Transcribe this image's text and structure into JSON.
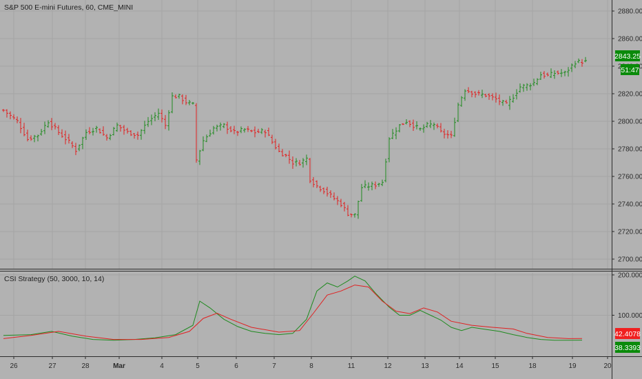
{
  "header": {
    "symbol_title": "S&P 500 E-mini Futures, 60, CME_MINI"
  },
  "indicator": {
    "title": "CSI Strategy (50, 3000, 10, 14)"
  },
  "badges": {
    "last_price": "2843.25",
    "countdown": "51:47",
    "ind_red": "42.4078",
    "ind_green": "38.3393"
  },
  "colors": {
    "background": "#b2b2b2",
    "up": "#1e8a1e",
    "down": "#e02020",
    "grid": "#a4a4a4",
    "badge_green": "#0a8a0a",
    "badge_red": "#f02020"
  },
  "axis": {
    "price_ticks": [
      "2880.00",
      "2860.00",
      "2840.00",
      "2820.00",
      "2800.00",
      "2780.00",
      "2760.00",
      "2740.00",
      "2720.00",
      "2700.00"
    ],
    "ind_ticks": [
      "200.0000",
      "100.0000"
    ],
    "x_ticks": [
      "26",
      "27",
      "28",
      "Mar",
      "4",
      "5",
      "6",
      "7",
      "8",
      "11",
      "12",
      "13",
      "14",
      "15",
      "18",
      "19",
      "20"
    ]
  },
  "chart_data": [
    {
      "type": "ohlc",
      "title": "S&P 500 E-mini Futures, 60, CME_MINI",
      "x_categories": [
        "26",
        "27",
        "28",
        "Mar",
        "4",
        "5",
        "6",
        "7",
        "8",
        "11",
        "12",
        "13",
        "14",
        "15",
        "18",
        "19",
        "20"
      ],
      "ylim": [
        2693,
        2888
      ],
      "y_ticks": [
        2880,
        2860,
        2840,
        2820,
        2800,
        2780,
        2760,
        2740,
        2720,
        2700
      ],
      "close_path": [
        [
          0,
          2808
        ],
        [
          4,
          2800
        ],
        [
          7,
          2787
        ],
        [
          10,
          2790
        ],
        [
          13,
          2800
        ],
        [
          16,
          2792
        ],
        [
          19,
          2785
        ],
        [
          21,
          2779
        ],
        [
          24,
          2792
        ],
        [
          27,
          2795
        ],
        [
          30,
          2788
        ],
        [
          33,
          2797
        ],
        [
          36,
          2792
        ],
        [
          39,
          2790
        ],
        [
          42,
          2800
        ],
        [
          45,
          2806
        ],
        [
          47,
          2797
        ],
        [
          49,
          2818
        ],
        [
          51,
          2818
        ],
        [
          53,
          2814
        ],
        [
          55,
          2812
        ],
        [
          56,
          2772
        ],
        [
          58,
          2786
        ],
        [
          61,
          2795
        ],
        [
          64,
          2797
        ],
        [
          67,
          2792
        ],
        [
          70,
          2794
        ],
        [
          73,
          2792
        ],
        [
          76,
          2793
        ],
        [
          78,
          2785
        ],
        [
          80,
          2778
        ],
        [
          82,
          2775
        ],
        [
          84,
          2770
        ],
        [
          86,
          2770
        ],
        [
          88,
          2773
        ],
        [
          89,
          2758
        ],
        [
          91,
          2753
        ],
        [
          93,
          2750
        ],
        [
          96,
          2744
        ],
        [
          98,
          2740
        ],
        [
          100,
          2733
        ],
        [
          102,
          2732
        ],
        [
          104,
          2752
        ],
        [
          106,
          2753
        ],
        [
          108,
          2754
        ],
        [
          110,
          2756
        ],
        [
          112,
          2788
        ],
        [
          115,
          2797
        ],
        [
          117,
          2800
        ],
        [
          119,
          2797
        ],
        [
          121,
          2794
        ],
        [
          123,
          2797
        ],
        [
          125,
          2798
        ],
        [
          127,
          2792
        ],
        [
          130,
          2789
        ],
        [
          132,
          2812
        ],
        [
          134,
          2823
        ],
        [
          137,
          2820
        ],
        [
          140,
          2819
        ],
        [
          143,
          2816
        ],
        [
          146,
          2812
        ],
        [
          148,
          2818
        ],
        [
          150,
          2825
        ],
        [
          152,
          2826
        ],
        [
          154,
          2828
        ],
        [
          156,
          2834
        ],
        [
          158,
          2833
        ],
        [
          160,
          2835
        ],
        [
          163,
          2835
        ],
        [
          166,
          2843
        ],
        [
          168,
          2843.25
        ]
      ],
      "last_price": 2843.25
    },
    {
      "type": "line",
      "title": "CSI Strategy (50, 3000, 10, 14)",
      "ylim": [
        0,
        205
      ],
      "y_ticks": [
        200,
        100
      ],
      "series": [
        {
          "color": "#1e8a1e",
          "values": [
            [
              0,
              50
            ],
            [
              8,
              52
            ],
            [
              14,
              60
            ],
            [
              20,
              48
            ],
            [
              26,
              40
            ],
            [
              32,
              38
            ],
            [
              38,
              40
            ],
            [
              44,
              44
            ],
            [
              50,
              52
            ],
            [
              55,
              75
            ],
            [
              57,
              135
            ],
            [
              60,
              118
            ],
            [
              64,
              90
            ],
            [
              68,
              72
            ],
            [
              72,
              60
            ],
            [
              76,
              55
            ],
            [
              80,
              52
            ],
            [
              84,
              55
            ],
            [
              88,
              90
            ],
            [
              91,
              160
            ],
            [
              94,
              180
            ],
            [
              97,
              170
            ],
            [
              100,
              185
            ],
            [
              102,
              197
            ],
            [
              105,
              185
            ],
            [
              108,
              155
            ],
            [
              112,
              120
            ],
            [
              115,
              100
            ],
            [
              118,
              100
            ],
            [
              121,
              112
            ],
            [
              124,
              100
            ],
            [
              127,
              88
            ],
            [
              130,
              70
            ],
            [
              133,
              62
            ],
            [
              136,
              70
            ],
            [
              140,
              65
            ],
            [
              144,
              60
            ],
            [
              148,
              52
            ],
            [
              152,
              45
            ],
            [
              156,
              40
            ],
            [
              160,
              38
            ],
            [
              164,
              38
            ],
            [
              168,
              38.3393
            ]
          ]
        },
        {
          "color": "#e02020",
          "values": [
            [
              0,
              42
            ],
            [
              8,
              50
            ],
            [
              16,
              60
            ],
            [
              24,
              48
            ],
            [
              32,
              40
            ],
            [
              40,
              40
            ],
            [
              48,
              45
            ],
            [
              54,
              60
            ],
            [
              58,
              92
            ],
            [
              62,
              105
            ],
            [
              66,
              90
            ],
            [
              72,
              70
            ],
            [
              80,
              58
            ],
            [
              86,
              62
            ],
            [
              90,
              105
            ],
            [
              94,
              150
            ],
            [
              98,
              160
            ],
            [
              102,
              175
            ],
            [
              106,
              170
            ],
            [
              110,
              135
            ],
            [
              114,
              110
            ],
            [
              118,
              104
            ],
            [
              122,
              118
            ],
            [
              126,
              108
            ],
            [
              130,
              85
            ],
            [
              136,
              75
            ],
            [
              142,
              70
            ],
            [
              148,
              66
            ],
            [
              152,
              55
            ],
            [
              158,
              45
            ],
            [
              164,
              42
            ],
            [
              168,
              42.4078
            ]
          ]
        }
      ],
      "last_values": [
        42.4078,
        38.3393
      ]
    }
  ]
}
